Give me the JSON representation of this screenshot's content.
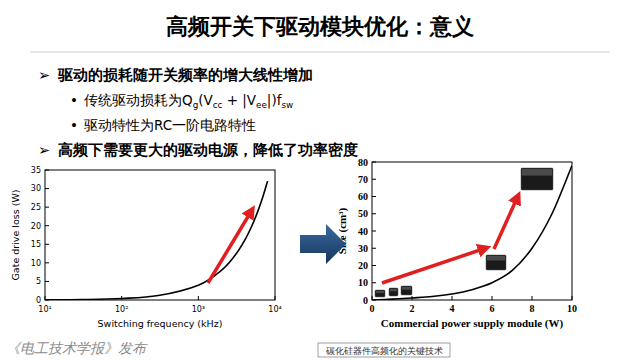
{
  "title": "高频开关下驱动模块优化：意义",
  "bullets": [
    {
      "level": 1,
      "symbol": "➢",
      "parts": [
        {
          "text": "驱动的损耗随开关频率的增大线性增加"
        }
      ]
    },
    {
      "level": 2,
      "symbol": "•",
      "parts": [
        {
          "text": "传统驱动损耗为"
        },
        {
          "text": "Q"
        },
        {
          "text": "g",
          "sub": true
        },
        {
          "text": "(V"
        },
        {
          "text": "cc",
          "sub": true
        },
        {
          "text": " + |V"
        },
        {
          "text": "ee",
          "sub": true
        },
        {
          "text": "|)f"
        },
        {
          "text": "sw",
          "sub": true
        }
      ]
    },
    {
      "level": 2,
      "symbol": "•",
      "parts": [
        {
          "text": "驱动特性为RC一阶电路特性"
        }
      ]
    },
    {
      "level": 1,
      "symbol": "➢",
      "parts": [
        {
          "text": "高频下需要更大的驱动电源，降低了功率密度"
        }
      ]
    }
  ],
  "footer": "《电工技术学报》发布",
  "footer_box": "碳化硅器件高频化的关键技术",
  "chart_data": [
    {
      "type": "line",
      "x_label": "Switching frequency (kHz)",
      "y_label": "Gate drive loss (W)",
      "x": [
        10,
        30,
        100,
        300,
        1000,
        2000,
        3000,
        4000,
        5000,
        6000,
        7000,
        8000
      ],
      "values": [
        0.04,
        0.12,
        0.4,
        1.2,
        4,
        8,
        12,
        16,
        20,
        24,
        28,
        32
      ],
      "color": "#000000",
      "log": "x",
      "xlim": [
        10,
        10000
      ],
      "xticks": [
        {
          "value": 10,
          "label": "10¹"
        },
        {
          "value": 100,
          "label": "10²"
        },
        {
          "value": 1000,
          "label": "10³"
        },
        {
          "value": 10000,
          "label": "10⁴"
        }
      ],
      "ylim": [
        0,
        35
      ],
      "yticks": [
        0,
        5,
        10,
        15,
        20,
        25,
        30,
        35
      ],
      "grid": false
    },
    {
      "type": "line",
      "x_label": "Commercial power supply module (W)",
      "y_label": "Size (cm³)",
      "x": [
        0,
        1,
        2,
        3,
        4,
        5,
        6,
        7,
        8,
        9,
        10
      ],
      "values": [
        0,
        0.5,
        1.2,
        2,
        3.5,
        6,
        10,
        17,
        30,
        50,
        78
      ],
      "color": "#000000",
      "xlim": [
        0,
        10
      ],
      "xticks": [
        0,
        2,
        4,
        6,
        8,
        10
      ],
      "ylim": [
        0,
        80
      ],
      "yticks": [
        0,
        10,
        20,
        30,
        40,
        50,
        60,
        70,
        80
      ],
      "grid": false
    }
  ]
}
